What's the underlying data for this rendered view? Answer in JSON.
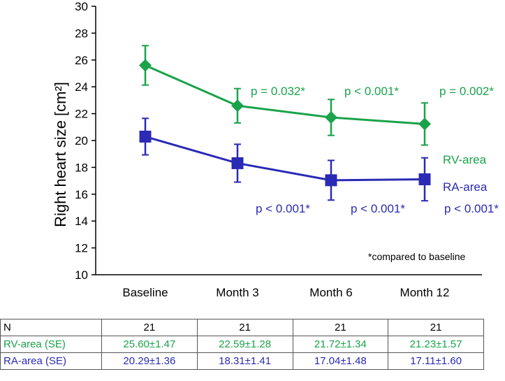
{
  "chart_data": {
    "type": "line",
    "ylabel": "Right heart size [cm²]",
    "xlabel": "",
    "ylim": [
      10,
      30
    ],
    "yticks": [
      10,
      12,
      14,
      16,
      18,
      20,
      22,
      24,
      26,
      28,
      30
    ],
    "categories": [
      "Baseline",
      "Month 3",
      "Month 6",
      "Month 12"
    ],
    "grid": false,
    "series": [
      {
        "name": "RV-area",
        "color": "#1aa34a",
        "marker": "diamond",
        "values": [
          25.6,
          22.59,
          21.72,
          21.23
        ],
        "errors": [
          1.47,
          1.28,
          1.34,
          1.57
        ],
        "pvalues": [
          "",
          "p = 0.032*",
          "p < 0.001*",
          "p = 0.002*"
        ]
      },
      {
        "name": "RA-area",
        "color": "#2a2ab4",
        "marker": "square",
        "values": [
          20.29,
          18.31,
          17.04,
          17.11
        ],
        "errors": [
          1.36,
          1.41,
          1.48,
          1.6
        ],
        "pvalues": [
          "",
          "p < 0.001*",
          "p < 0.001*",
          "p < 0.001*"
        ]
      }
    ],
    "footnote": "*compared to baseline"
  },
  "table": {
    "rows": [
      {
        "label": "N",
        "color": "#000000",
        "cells": [
          "21",
          "21",
          "21",
          "21"
        ]
      },
      {
        "label": "RV-area (SE)",
        "color": "#1aa34a",
        "cells": [
          "25.60±1.47",
          "22.59±1.28",
          "21.72±1.34",
          "21.23±1.57"
        ]
      },
      {
        "label": "RA-area (SE)",
        "color": "#2a2ab4",
        "cells": [
          "20.29±1.36",
          "18.31±1.41",
          "17.04±1.48",
          "17.11±1.60"
        ]
      }
    ]
  }
}
